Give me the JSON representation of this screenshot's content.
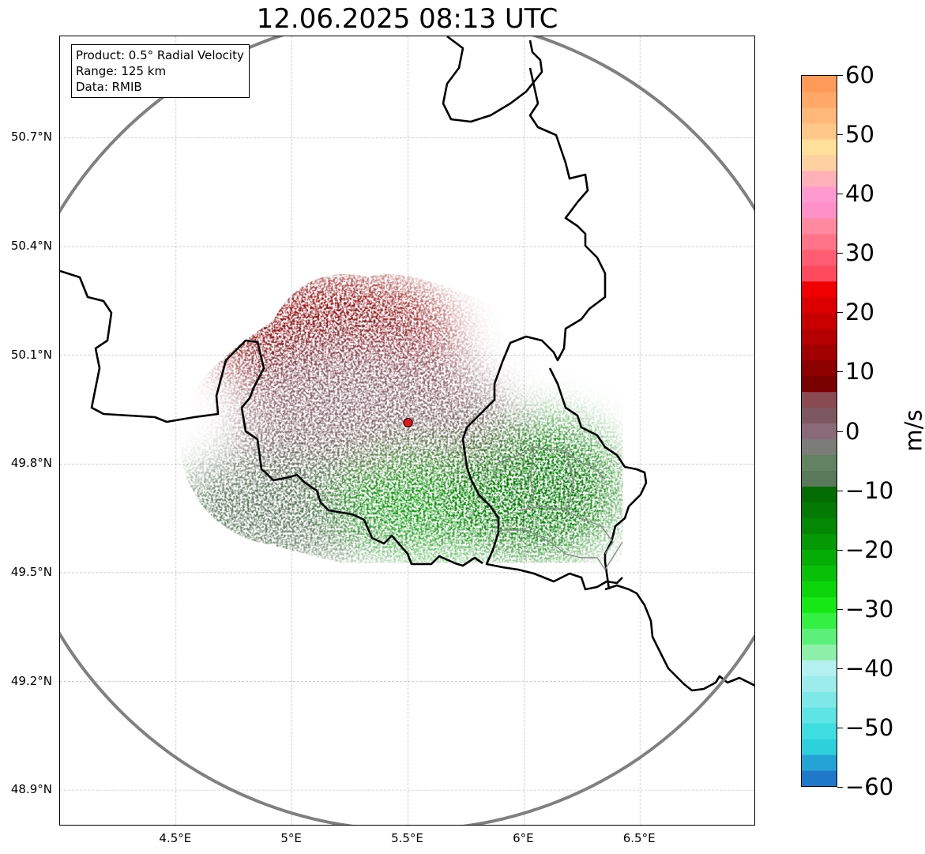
{
  "title": "12.06.2025 08:13 UTC",
  "info_box": {
    "product": "Product: 0.5° Radial Velocity",
    "range": "Range: 125 km",
    "data_source": "Data: RMIB"
  },
  "axes": {
    "lon_min": 4.0,
    "lon_max": 7.0,
    "lat_min": 48.8,
    "lat_max": 50.98,
    "lat_ticks": [
      {
        "value": 50.7,
        "label": "50.7°N"
      },
      {
        "value": 50.4,
        "label": "50.4°N"
      },
      {
        "value": 50.1,
        "label": "50.1°N"
      },
      {
        "value": 49.8,
        "label": "49.8°N"
      },
      {
        "value": 49.5,
        "label": "49.5°N"
      },
      {
        "value": 49.2,
        "label": "49.2°N"
      },
      {
        "value": 48.9,
        "label": "48.9°N"
      }
    ],
    "lon_ticks": [
      {
        "value": 4.5,
        "label": "4.5°E"
      },
      {
        "value": 5.0,
        "label": "5°E"
      },
      {
        "value": 5.5,
        "label": "5.5°E"
      },
      {
        "value": 6.0,
        "label": "6°E"
      },
      {
        "value": 6.5,
        "label": "6.5°E"
      }
    ],
    "grid": true
  },
  "radar": {
    "site_lon": 5.5,
    "site_lat": 49.914,
    "range_km": 125,
    "site_color": "#e8141c"
  },
  "velocity_regions": [
    {
      "name": "outbound-max",
      "lon": 5.2,
      "lat": 50.13,
      "color": "#8b0000"
    },
    {
      "name": "outbound-mid",
      "lon": 5.45,
      "lat": 50.02,
      "color": "#a80a0a"
    },
    {
      "name": "near-zero",
      "lon": 5.35,
      "lat": 49.9,
      "color": "#8c6a74"
    },
    {
      "name": "near-zero-neg",
      "lon": 5.0,
      "lat": 49.68,
      "color": "#5e7a5e"
    },
    {
      "name": "inbound-mid",
      "lon": 5.6,
      "lat": 49.7,
      "color": "#0a9a0a"
    },
    {
      "name": "inbound-far",
      "lon": 6.05,
      "lat": 49.73,
      "color": "#067a06"
    }
  ],
  "colorbar": {
    "vmin": -60,
    "vmax": 60,
    "unit": "m/s",
    "ticks": [
      60,
      50,
      40,
      30,
      20,
      10,
      0,
      -10,
      -20,
      -30,
      -40,
      -50,
      -60
    ],
    "tick_labels": [
      "60",
      "50",
      "40",
      "30",
      "20",
      "10",
      "0",
      "−10",
      "−20",
      "−30",
      "−40",
      "−50",
      "−60"
    ],
    "colors": [
      "#1f78c8",
      "#26a3d6",
      "#2ed0dc",
      "#3ddde0",
      "#5ee4e4",
      "#7ee8e8",
      "#9cecec",
      "#b4f0f0",
      "#8ef0a8",
      "#5cf07a",
      "#33f043",
      "#16e816",
      "#0bd40b",
      "#08c008",
      "#06ac06",
      "#059905",
      "#048804",
      "#047a04",
      "#036c03",
      "#5a785a",
      "#628262",
      "#7c7c78",
      "#8a6a76",
      "#7e5860",
      "#8a4a52",
      "#7a0000",
      "#8c0000",
      "#a00000",
      "#b40000",
      "#c80000",
      "#dc0000",
      "#f00000",
      "#ff4a5e",
      "#ff5e72",
      "#ff7488",
      "#ff8aa0",
      "#ff90c8",
      "#ff9ad0",
      "#ffb0b8",
      "#ffd0a0",
      "#ffe09a",
      "#ffc888",
      "#ffb878",
      "#ffa868",
      "#ff9a58"
    ]
  }
}
